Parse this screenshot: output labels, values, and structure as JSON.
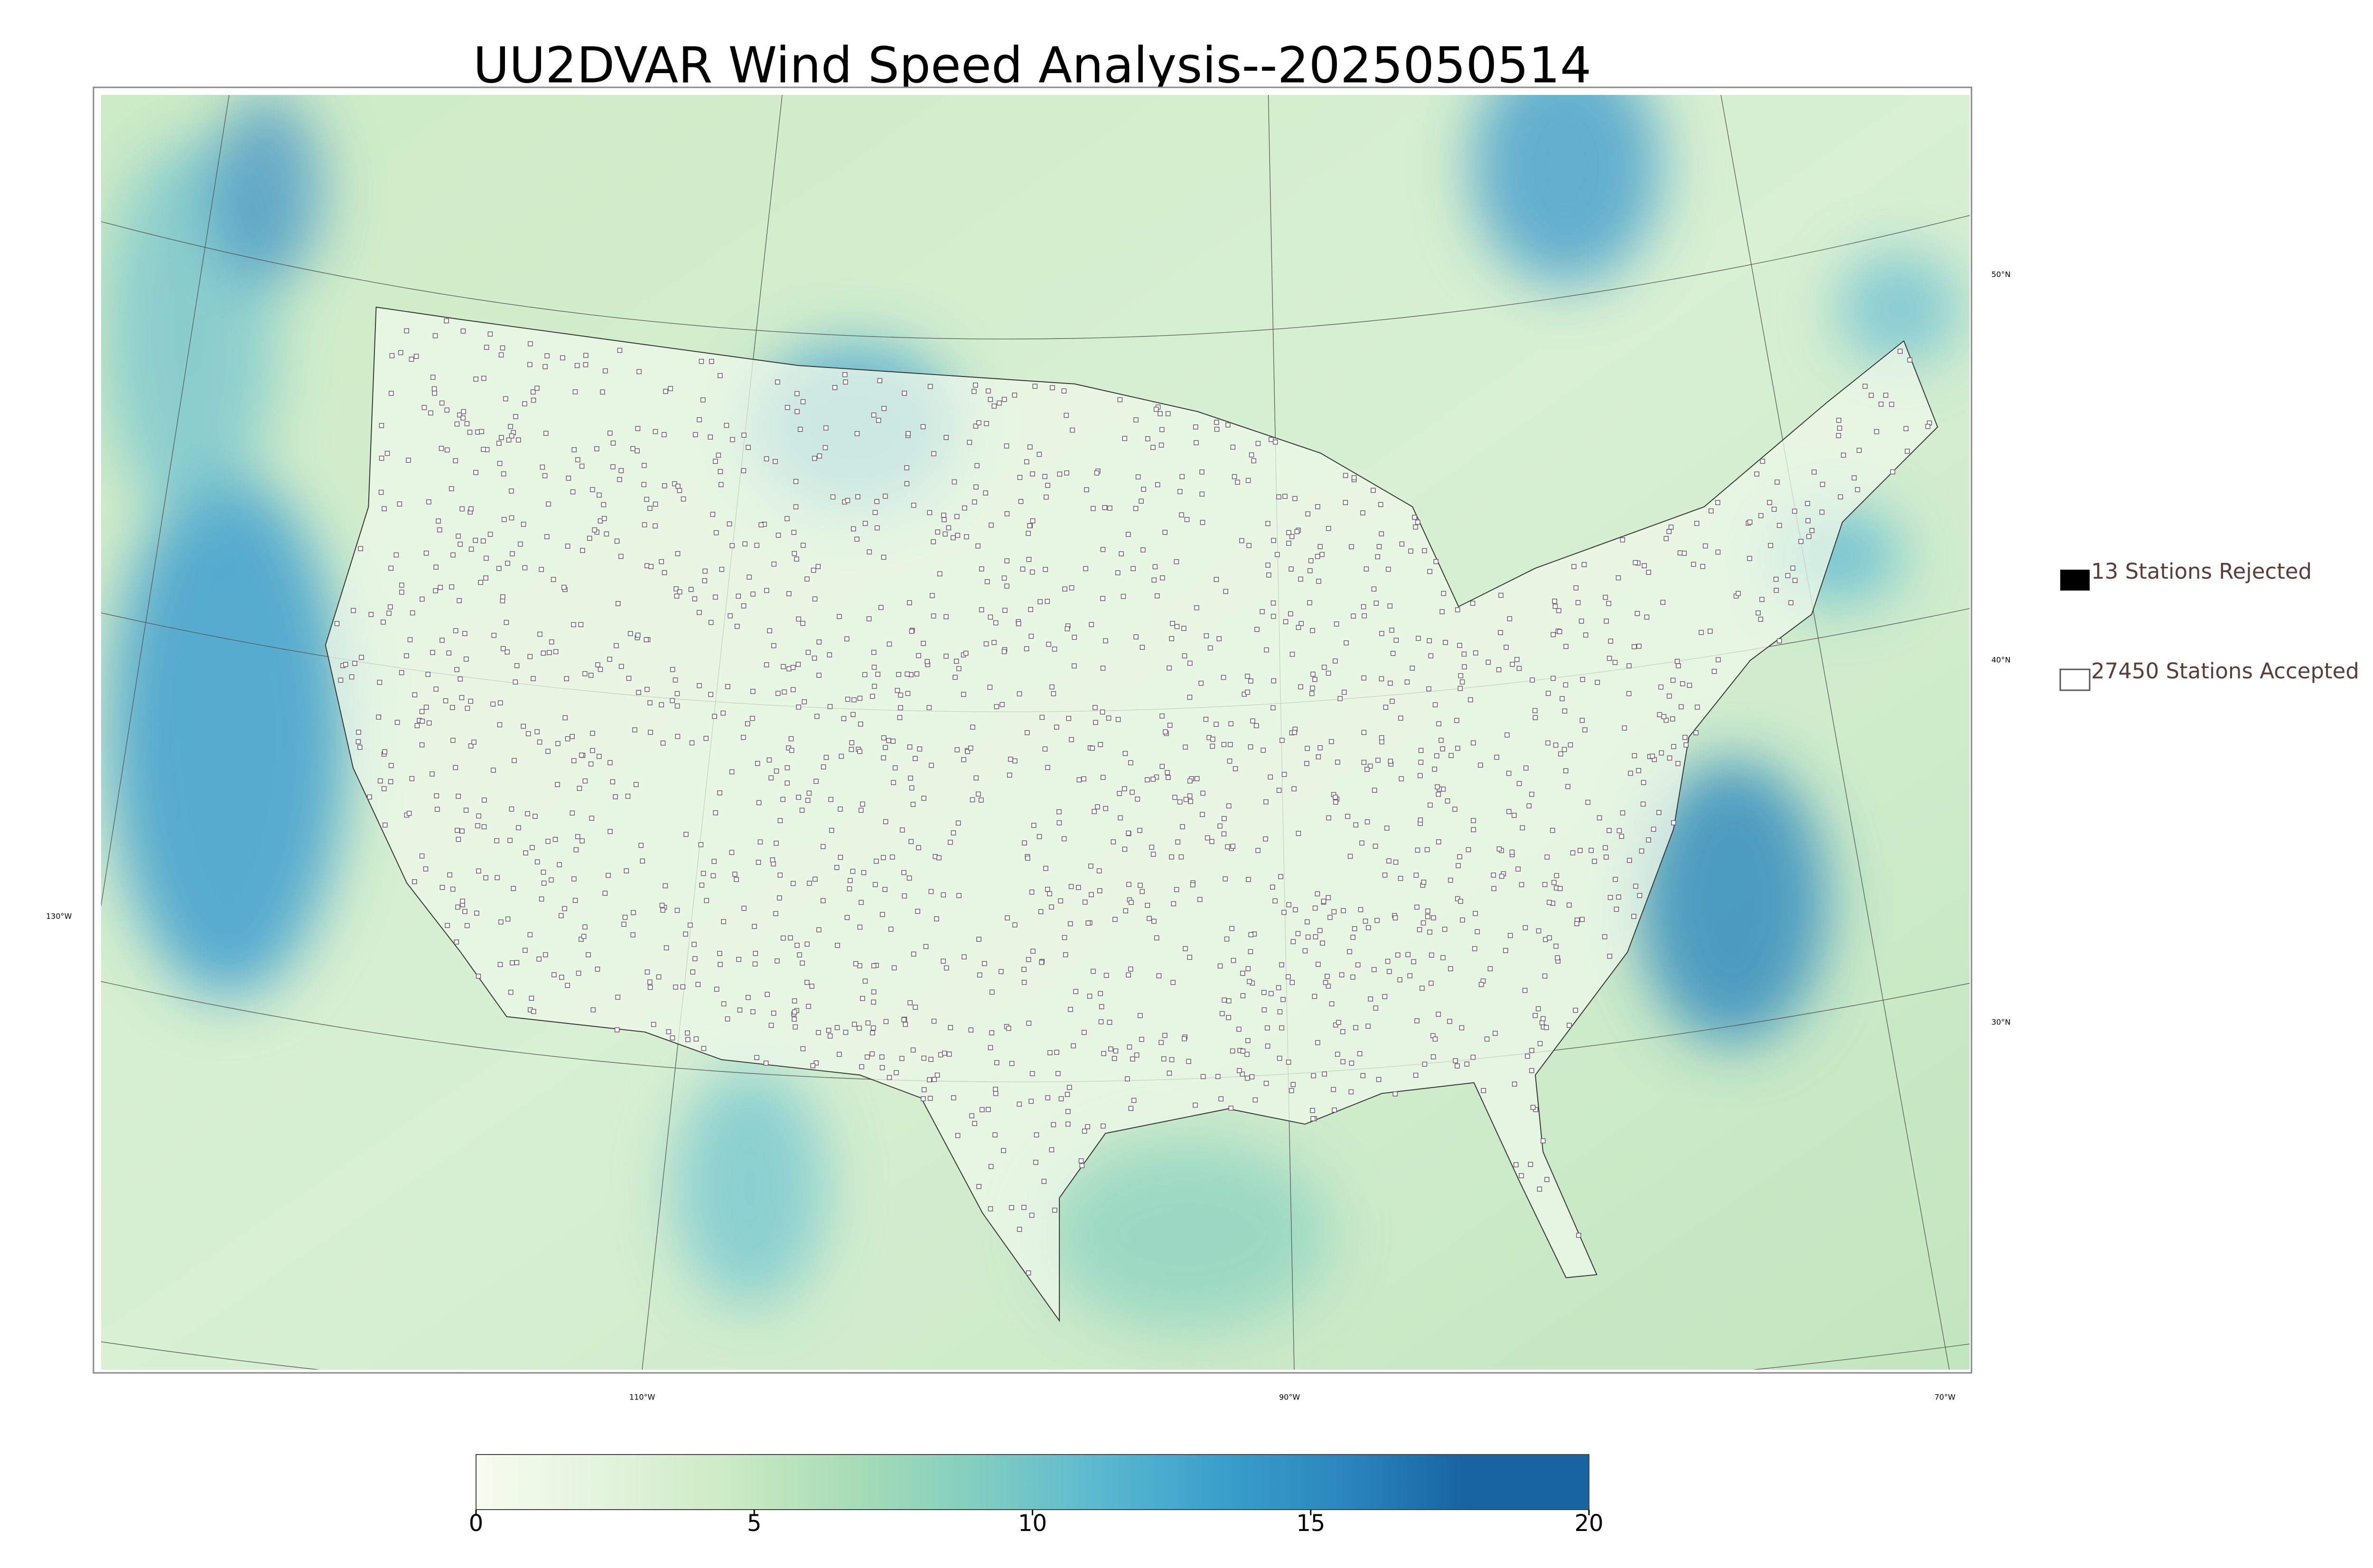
{
  "header": {
    "title": "UU2DVAR Wind Speed Analysis--2025050514"
  },
  "legend": {
    "entries": [
      "13 Stations Rejected",
      "27450 Stations Accepted"
    ]
  },
  "map": {
    "lat_labels": [
      "50°N",
      "40°N",
      "30°N"
    ],
    "lon_labels": [
      "130°W",
      "110°W",
      "90°W",
      "70°W"
    ]
  },
  "colorbar": {
    "lim": [
      0,
      20
    ],
    "ticks": [
      0,
      5,
      10,
      15,
      20
    ],
    "colors": [
      "#f7fcf0",
      "#e4f4dd",
      "#cdebc6",
      "#a9ddb6",
      "#84cfbf",
      "#5cbad0",
      "#3aa0cb",
      "#2b87bd",
      "#1764a0",
      "#1764a0"
    ]
  }
}
